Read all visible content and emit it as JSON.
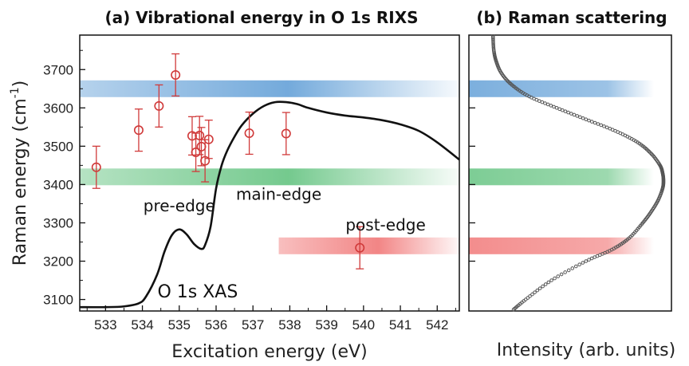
{
  "chart_data": [
    {
      "panel": "a",
      "type": "scatter",
      "title": "(a) Vibrational energy in O 1s RIXS",
      "xlabel": "Excitation energy (eV)",
      "ylabel_main": "Raman energy (cm",
      "ylabel_sup": "-1",
      "ylabel_close": ")",
      "xlim": [
        532.3,
        542.6
      ],
      "ylim": [
        3070,
        3790
      ],
      "xticks": [
        533,
        534,
        535,
        536,
        537,
        538,
        539,
        540,
        541,
        542
      ],
      "yticks": [
        3100,
        3200,
        3300,
        3400,
        3500,
        3600,
        3700
      ],
      "series": [
        {
          "marker": "open-circle",
          "color": "#d03a3a",
          "points": [
            {
              "x": 532.75,
              "y": 3445,
              "err": 55
            },
            {
              "x": 533.9,
              "y": 3542,
              "err": 55
            },
            {
              "x": 534.45,
              "y": 3605,
              "err": 55
            },
            {
              "x": 534.9,
              "y": 3686,
              "err": 55
            },
            {
              "x": 535.35,
              "y": 3527,
              "err": 50
            },
            {
              "x": 535.45,
              "y": 3484,
              "err": 50
            },
            {
              "x": 535.55,
              "y": 3528,
              "err": 50
            },
            {
              "x": 535.6,
              "y": 3499,
              "err": 50
            },
            {
              "x": 535.7,
              "y": 3462,
              "err": 55
            },
            {
              "x": 535.8,
              "y": 3518,
              "err": 50
            },
            {
              "x": 536.9,
              "y": 3534,
              "err": 55
            },
            {
              "x": 537.9,
              "y": 3533,
              "err": 55
            },
            {
              "x": 539.9,
              "y": 3235,
              "err": 55
            }
          ]
        }
      ],
      "xas_curve": {
        "color": "#111111",
        "x": [
          532.3,
          533.0,
          533.5,
          533.9,
          534.1,
          534.4,
          534.6,
          534.8,
          535.0,
          535.2,
          535.4,
          535.6,
          535.7,
          535.85,
          536.0,
          536.15,
          536.3,
          536.5,
          536.7,
          537.0,
          537.3,
          537.6,
          537.9,
          538.2,
          538.5,
          539.0,
          539.5,
          540.0,
          540.5,
          541.0,
          541.5,
          542.0,
          542.6
        ],
        "y": [
          3080,
          3080,
          3082,
          3090,
          3108,
          3165,
          3225,
          3268,
          3283,
          3270,
          3245,
          3232,
          3242,
          3290,
          3390,
          3450,
          3488,
          3525,
          3555,
          3585,
          3605,
          3615,
          3615,
          3610,
          3600,
          3588,
          3580,
          3575,
          3568,
          3557,
          3540,
          3510,
          3465
        ]
      },
      "bands": [
        {
          "y": 3650,
          "color": "#5b9bd5",
          "x_start": 532.3,
          "x_end": 542.6
        },
        {
          "y": 3420,
          "color": "#5cc07a",
          "x_start": 532.3,
          "x_end": 542.6
        },
        {
          "y": 3240,
          "color": "#f07070",
          "x_start": 537.7,
          "x_end": 542.6
        }
      ],
      "annotations": [
        {
          "text": "pre-edge",
          "x": 535.0,
          "y": 3330
        },
        {
          "text": "main-edge",
          "x": 537.7,
          "y": 3360
        },
        {
          "text": "post-edge",
          "x": 540.6,
          "y": 3280
        },
        {
          "text": "O 1s XAS",
          "x": 535.5,
          "y": 3105
        }
      ]
    },
    {
      "panel": "b",
      "type": "line",
      "title": "(b) Raman scattering",
      "xlabel": "Intensity (arb. units)",
      "ylim": [
        3070,
        3790
      ],
      "yticks": [
        3200,
        3300,
        3400,
        3500,
        3600
      ],
      "series": [
        {
          "color": "#555555",
          "style": "dotted",
          "y": [
            3070,
            3100,
            3150,
            3200,
            3230,
            3260,
            3300,
            3330,
            3360,
            3390,
            3410,
            3430,
            3450,
            3480,
            3510,
            3540,
            3570,
            3600,
            3630,
            3660,
            3690,
            3720,
            3750,
            3790
          ],
          "x": [
            0.12,
            0.2,
            0.35,
            0.55,
            0.7,
            0.8,
            0.88,
            0.93,
            0.97,
            0.995,
            1.0,
            0.995,
            0.98,
            0.93,
            0.85,
            0.72,
            0.55,
            0.38,
            0.22,
            0.12,
            0.06,
            0.03,
            0.015,
            0.01
          ]
        }
      ]
    }
  ]
}
